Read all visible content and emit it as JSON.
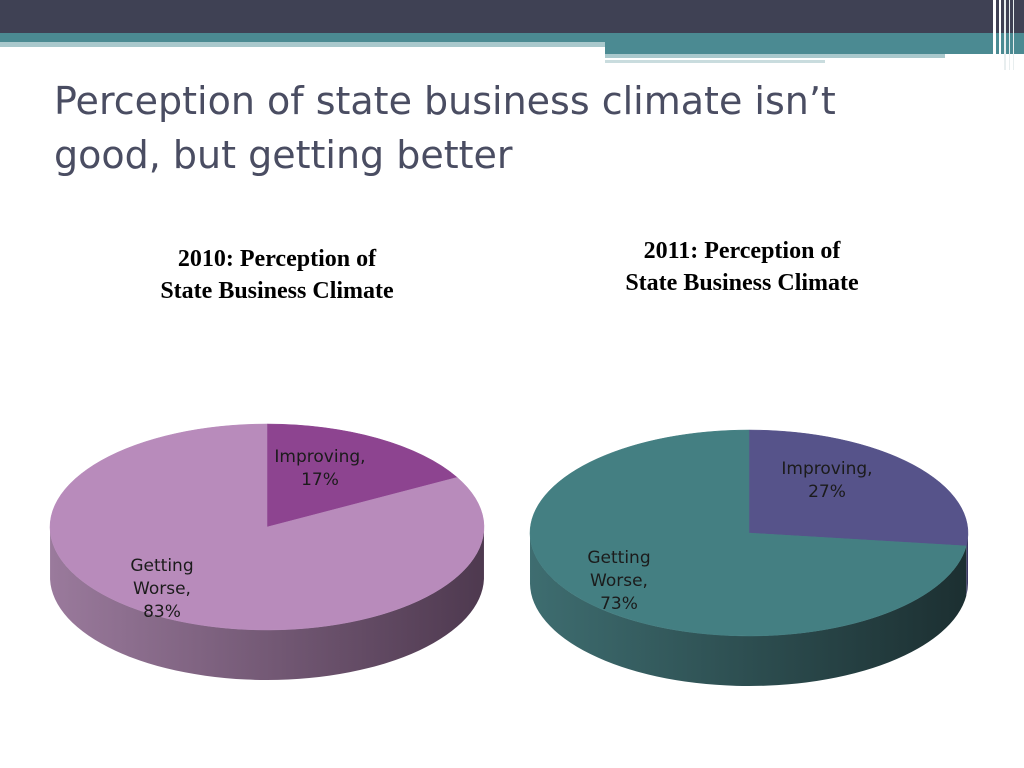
{
  "slide": {
    "title_line1": "Perception of state business climate isn’t",
    "title_line2": "good, but getting better"
  },
  "colors": {
    "header_dark": "#3f4154",
    "header_teal": "#4b8a92",
    "header_light": "#a9c8cc",
    "title_text": "#4a4d62"
  },
  "chart_data": [
    {
      "type": "pie",
      "style": "3d",
      "title_line1": "2010: Perception of",
      "title_line2": "State Business Climate",
      "slices": [
        {
          "label": "Improving,",
          "percent_label": "17%",
          "value": 17,
          "color": "#8d4490",
          "side_dark": "#6a3a6c",
          "side_light": "#8e6a90"
        },
        {
          "label": "Getting Worse,",
          "label_line1": "Getting",
          "label_line2": "Worse,",
          "percent_label": "83%",
          "value": 83,
          "color": "#b88bbb",
          "side_dark": "#4e394f",
          "side_light": "#9a7a9c"
        }
      ]
    },
    {
      "type": "pie",
      "style": "3d",
      "title_line1": "2011: Perception of",
      "title_line2": "State Business Climate",
      "slices": [
        {
          "label": "Improving,",
          "percent_label": "27%",
          "value": 27,
          "color": "#56538a",
          "side_dark": "#34325a",
          "side_light": "#4a4878"
        },
        {
          "label": "Getting Worse,",
          "label_line1": "Getting",
          "label_line2": "Worse,",
          "percent_label": "73%",
          "value": 73,
          "color": "#447f82",
          "side_dark": "#1c2f31",
          "side_light": "#3e6d70"
        }
      ]
    }
  ]
}
